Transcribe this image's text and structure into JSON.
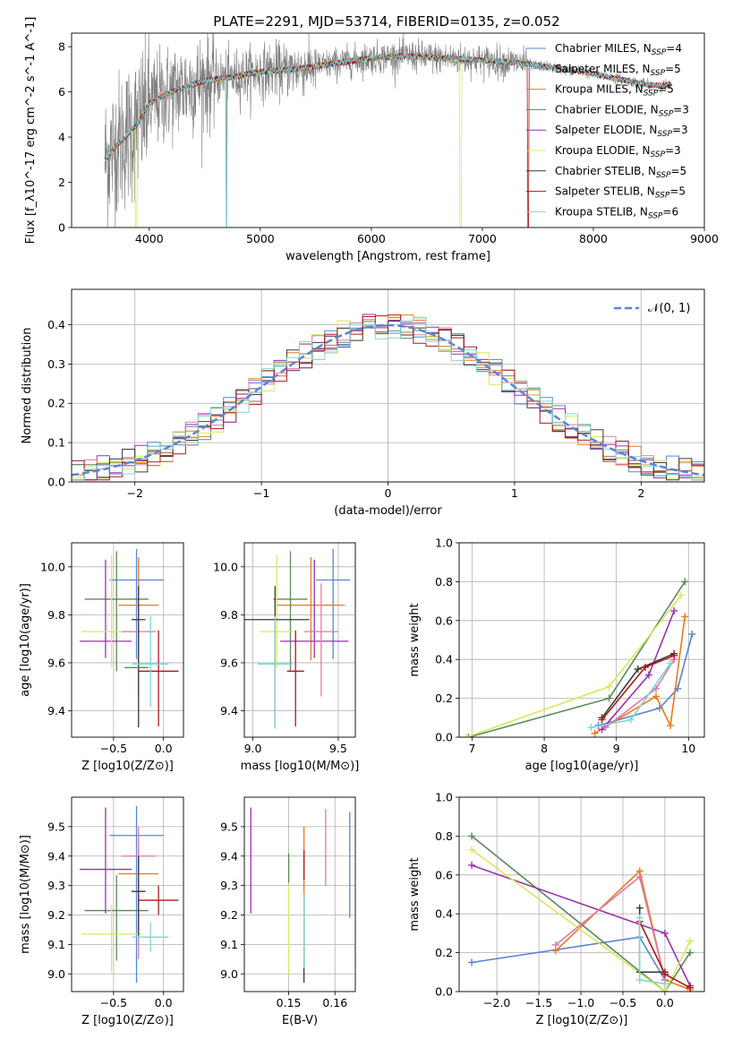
{
  "page_title": "PLATE=2291, MJD=53714, FIBERID=0135, z=0.052",
  "colors": {
    "Chabrier MILES": "#5b84d6",
    "Salpeter MILES": "#8f9cd2",
    "Kroupa MILES": "#e87b1c",
    "Chabrier ELODIE": "#5a8a5a",
    "Salpeter ELODIE": "#9b30b0",
    "Kroupa ELODIE": "#d8e85c",
    "Chabrier STELIB": "#3a3a3a",
    "Salpeter STELIB": "#b01818",
    "Kroupa STELIB": "#7ed6d6",
    "pink": "#e07aa8",
    "gauss": "#5b84d6",
    "data": "#808080"
  },
  "chart_data": [
    {
      "id": "spectrum",
      "type": "line",
      "title": "PLATE=2291, MJD=53714, FIBERID=0135, z=0.052",
      "xlabel": "wavelength [Angstrom, rest frame]",
      "ylabel": "Flux [f_λ10^-17 erg cm^-2 s^-1 A^-1]",
      "xlim": [
        3300,
        9000
      ],
      "ylim": [
        0,
        8.6
      ],
      "xticks": [
        4000,
        5000,
        6000,
        7000,
        8000,
        9000
      ],
      "yticks": [
        0,
        2,
        4,
        6,
        8
      ],
      "legend": "top-right",
      "continuum_x": [
        3600,
        3700,
        3800,
        3900,
        4000,
        4200,
        4500,
        4800,
        5000,
        5300,
        5600,
        6000,
        6300,
        6600,
        7000,
        7300,
        7600,
        7900,
        8200,
        8500,
        8700
      ],
      "continuum_y": [
        3.0,
        3.6,
        4.1,
        4.6,
        5.5,
        6.0,
        6.5,
        6.7,
        6.9,
        7.0,
        7.2,
        7.5,
        7.6,
        7.5,
        7.4,
        7.3,
        7.1,
        6.9,
        6.6,
        6.3,
        6.3
      ],
      "series": [
        {
          "name": "Chabrier MILES, N_SSP=4"
        },
        {
          "name": "Salpeter MILES, N_SSP=5"
        },
        {
          "name": "Kroupa MILES, N_SSP=5"
        },
        {
          "name": "Chabrier ELODIE, N_SSP=3"
        },
        {
          "name": "Salpeter ELODIE, N_SSP=3"
        },
        {
          "name": "Kroupa ELODIE, N_SSP=3"
        },
        {
          "name": "Chabrier STELIB, N_SSP=5"
        },
        {
          "name": "Salpeter STELIB, N_SSP=5"
        },
        {
          "name": "Kroupa STELIB, N_SSP=6"
        }
      ]
    },
    {
      "id": "residuals",
      "type": "line",
      "xlabel": "(data-model)/error",
      "ylabel": "Normed distribution",
      "xlim": [
        -2.5,
        2.5
      ],
      "ylim": [
        0,
        0.49
      ],
      "xticks": [
        -2,
        -1,
        0,
        1,
        2
      ],
      "yticks": [
        0.0,
        0.1,
        0.2,
        0.3,
        0.4
      ],
      "grid": true,
      "legend": "top-right",
      "legend_label": "𝒩(0, 1)",
      "bin_width": 0.1
    },
    {
      "id": "age_vs_Z",
      "type": "scatter",
      "xlabel": "Z [log10(Z/Z⊙)]",
      "ylabel": "age [log10(age/yr)]",
      "xlim": [
        -0.92,
        0.2
      ],
      "ylim": [
        9.29,
        10.1
      ],
      "xticks": [
        -0.5,
        0.0
      ],
      "yticks": [
        9.4,
        9.6,
        9.8,
        10.0
      ],
      "grid": true,
      "points": [
        {
          "color": "Chabrier MILES",
          "x": -0.27,
          "xerr": 0.27,
          "y": 9.945,
          "yerr_lo": 0.33,
          "yerr_hi": 0.13
        },
        {
          "color": "Kroupa MILES",
          "x": -0.25,
          "xerr": 0.2,
          "y": 9.84,
          "yerr_lo": 0.23,
          "yerr_hi": 0.2
        },
        {
          "color": "Chabrier ELODIE",
          "x": -0.47,
          "xerr": 0.32,
          "y": 9.865,
          "yerr_lo": 0.3,
          "yerr_hi": 0.2
        },
        {
          "color": "Salpeter ELODIE",
          "x": -0.58,
          "xerr": 0.26,
          "y": 9.69,
          "yerr_lo": 0.07,
          "yerr_hi": 0.34
        },
        {
          "color": "Kroupa ELODIE",
          "x": -0.52,
          "xerr": 0.3,
          "y": 9.73,
          "yerr_lo": 0.15,
          "yerr_hi": 0.32
        },
        {
          "color": "pink",
          "x": -0.25,
          "xerr": 0.17,
          "y": 9.73,
          "yerr_lo": 0.27,
          "yerr_hi": 0.2
        },
        {
          "color": "Chabrier STELIB",
          "x": -0.25,
          "xerr": 0.07,
          "y": 9.78,
          "yerr_lo": 0.45,
          "yerr_hi": 0.14
        },
        {
          "color": "Salpeter STELIB",
          "x": -0.05,
          "xerr": 0.2,
          "y": 9.565,
          "yerr_lo": 0.23,
          "yerr_hi": 0.17
        },
        {
          "color": "Kroupa STELIB",
          "x": -0.13,
          "xerr": 0.18,
          "y": 9.595,
          "yerr_lo": 0.18,
          "yerr_hi": 0.2
        },
        {
          "color": "Chabrier ELODIE",
          "x": -0.27,
          "xerr": 0.12,
          "y": 9.58,
          "yerr_lo": 0.0,
          "yerr_hi": 0.0
        }
      ]
    },
    {
      "id": "age_vs_mass",
      "type": "scatter",
      "xlabel": "mass [log10(M/M⊙)]",
      "ylabel": "",
      "xlim": [
        8.95,
        9.6
      ],
      "ylim": [
        9.29,
        10.1
      ],
      "xticks": [
        9.0,
        9.5
      ],
      "yticks": [
        9.4,
        9.6,
        9.8,
        10.0
      ],
      "grid": true,
      "points": [
        {
          "color": "Chabrier MILES",
          "x": 9.47,
          "xerr": 0.1,
          "y": 9.945,
          "yerr_lo": 0.33,
          "yerr_hi": 0.13
        },
        {
          "color": "Kroupa MILES",
          "x": 9.34,
          "xerr": 0.2,
          "y": 9.84,
          "yerr_lo": 0.23,
          "yerr_hi": 0.2
        },
        {
          "color": "Chabrier ELODIE",
          "x": 9.22,
          "xerr": 0.1,
          "y": 9.865,
          "yerr_lo": 0.3,
          "yerr_hi": 0.2
        },
        {
          "color": "Salpeter ELODIE",
          "x": 9.36,
          "xerr": 0.2,
          "y": 9.69,
          "yerr_lo": 0.07,
          "yerr_hi": 0.34
        },
        {
          "color": "Kroupa ELODIE",
          "x": 9.14,
          "xerr": 0.1,
          "y": 9.73,
          "yerr_lo": 0.15,
          "yerr_hi": 0.32
        },
        {
          "color": "pink",
          "x": 9.4,
          "xerr": 0.1,
          "y": 9.73,
          "yerr_lo": 0.27,
          "yerr_hi": 0.2
        },
        {
          "color": "Chabrier STELIB",
          "x": 9.13,
          "xerr": 0.2,
          "y": 9.78,
          "yerr_lo": 0.45,
          "yerr_hi": 0.14
        },
        {
          "color": "Salpeter STELIB",
          "x": 9.25,
          "xerr": 0.05,
          "y": 9.565,
          "yerr_lo": 0.23,
          "yerr_hi": 0.17
        },
        {
          "color": "Kroupa STELIB",
          "x": 9.13,
          "xerr": 0.1,
          "y": 9.595,
          "yerr_lo": 0.27,
          "yerr_hi": 0.2
        }
      ]
    },
    {
      "id": "weight_vs_age",
      "type": "line",
      "xlabel": "age [log10(age/yr)]",
      "ylabel": "mass weight",
      "xlim": [
        6.82,
        10.22
      ],
      "ylim": [
        0,
        1.0
      ],
      "xticks": [
        7,
        8,
        9,
        10
      ],
      "yticks": [
        0.0,
        0.2,
        0.4,
        0.6,
        0.8,
        1.0
      ],
      "grid": true,
      "series": [
        {
          "color": "Chabrier MILES",
          "x": [
            8.75,
            9.6,
            9.85,
            10.05
          ],
          "y": [
            0.06,
            0.15,
            0.25,
            0.53
          ]
        },
        {
          "color": "Kroupa MILES",
          "x": [
            8.7,
            9.55,
            9.75,
            9.95
          ],
          "y": [
            0.02,
            0.21,
            0.06,
            0.62
          ]
        },
        {
          "color": "Chabrier ELODIE",
          "x": [
            6.95,
            8.9,
            9.95
          ],
          "y": [
            0.0,
            0.2,
            0.8
          ]
        },
        {
          "color": "Salpeter ELODIE",
          "x": [
            8.8,
            9.45,
            9.8
          ],
          "y": [
            0.04,
            0.32,
            0.65
          ]
        },
        {
          "color": "Kroupa ELODIE",
          "x": [
            6.92,
            8.9,
            9.9
          ],
          "y": [
            0.0,
            0.26,
            0.73
          ]
        },
        {
          "color": "pink",
          "x": [
            8.85,
            9.55,
            9.8
          ],
          "y": [
            0.05,
            0.25,
            0.4
          ]
        },
        {
          "color": "Chabrier STELIB",
          "x": [
            8.8,
            9.3,
            9.8
          ],
          "y": [
            0.1,
            0.35,
            0.43
          ]
        },
        {
          "color": "Salpeter STELIB",
          "x": [
            8.8,
            9.4,
            9.8
          ],
          "y": [
            0.09,
            0.36,
            0.42
          ]
        },
        {
          "color": "Kroupa STELIB",
          "x": [
            8.65,
            9.2,
            9.75
          ],
          "y": [
            0.05,
            0.09,
            0.38
          ]
        }
      ]
    },
    {
      "id": "mass_vs_Z",
      "type": "scatter",
      "xlabel": "Z [log10(Z/Z⊙)]",
      "ylabel": "mass [log10(M/M⊙)]",
      "xlim": [
        -0.92,
        0.2
      ],
      "ylim": [
        8.94,
        9.6
      ],
      "xticks": [
        -0.5,
        0.0
      ],
      "yticks": [
        9.0,
        9.1,
        9.2,
        9.3,
        9.4,
        9.5
      ],
      "grid": true,
      "points": [
        {
          "color": "Chabrier MILES",
          "x": -0.27,
          "xerr": 0.27,
          "y": 9.47,
          "yerr_lo": 0.5,
          "yerr_hi": 0.1
        },
        {
          "color": "Kroupa MILES",
          "x": -0.25,
          "xerr": 0.2,
          "y": 9.34,
          "yerr_lo": 0.2,
          "yerr_hi": 0.1
        },
        {
          "color": "Chabrier ELODIE",
          "x": -0.47,
          "xerr": 0.32,
          "y": 9.215,
          "yerr_lo": 0.17,
          "yerr_hi": 0.12
        },
        {
          "color": "Salpeter ELODIE",
          "x": -0.58,
          "xerr": 0.26,
          "y": 9.355,
          "yerr_lo": 0.15,
          "yerr_hi": 0.21
        },
        {
          "color": "Kroupa ELODIE",
          "x": -0.52,
          "xerr": 0.3,
          "y": 9.135,
          "yerr_lo": 0.13,
          "yerr_hi": 0.1
        },
        {
          "color": "pink",
          "x": -0.25,
          "xerr": 0.17,
          "y": 9.4,
          "yerr_lo": 0.35,
          "yerr_hi": 0.1
        },
        {
          "color": "Chabrier STELIB",
          "x": -0.25,
          "xerr": 0.07,
          "y": 9.28,
          "yerr_lo": 0.15,
          "yerr_hi": 0.12
        },
        {
          "color": "Salpeter STELIB",
          "x": -0.05,
          "xerr": 0.2,
          "y": 9.25,
          "yerr_lo": 0.05,
          "yerr_hi": 0.05
        },
        {
          "color": "Kroupa STELIB",
          "x": -0.13,
          "xerr": 0.18,
          "y": 9.125,
          "yerr_lo": 0.05,
          "yerr_hi": 0.05
        }
      ]
    },
    {
      "id": "mass_vs_ebv",
      "type": "scatter",
      "xlabel": "E(B-V)",
      "ylabel": "",
      "xlim": [
        0.1404,
        0.1644
      ],
      "ylim": [
        8.94,
        9.6
      ],
      "xticks": [
        0.15,
        0.16
      ],
      "yticks": [
        9.0,
        9.1,
        9.2,
        9.3,
        9.4,
        9.5
      ],
      "grid": true,
      "points": [
        {
          "color": "Salpeter ELODIE",
          "x": 0.1418,
          "y": 9.385,
          "yerr_lo": 0.18,
          "yerr_hi": 0.18
        },
        {
          "color": "Kroupa ELODIE",
          "x": 0.15,
          "y": 9.1,
          "yerr_lo": 0.1,
          "yerr_hi": 0.2
        },
        {
          "color": "Chabrier ELODIE",
          "x": 0.15,
          "y": 9.36,
          "yerr_lo": 0.05,
          "yerr_hi": 0.05
        },
        {
          "color": "Chabrier STELIB",
          "x": 0.1533,
          "y": 9.12,
          "yerr_lo": 0.15,
          "yerr_hi": 0.15
        },
        {
          "color": "Kroupa STELIB",
          "x": 0.1533,
          "y": 9.12,
          "yerr_lo": 0.1,
          "yerr_hi": 0.15
        },
        {
          "color": "Kroupa MILES",
          "x": 0.1533,
          "y": 9.37,
          "yerr_lo": 0.1,
          "yerr_hi": 0.13
        },
        {
          "color": "Salpeter STELIB",
          "x": 0.1533,
          "y": 9.37,
          "yerr_lo": 0.05,
          "yerr_hi": 0.05
        },
        {
          "color": "pink",
          "x": 0.158,
          "y": 9.43,
          "yerr_lo": 0.13,
          "yerr_hi": 0.13
        },
        {
          "color": "Chabrier MILES",
          "x": 0.1632,
          "y": 9.37,
          "yerr_lo": 0.18,
          "yerr_hi": 0.18
        }
      ]
    },
    {
      "id": "weight_vs_Z",
      "type": "line",
      "xlabel": "Z [log10(Z/Z⊙)]",
      "ylabel": "mass weight",
      "xlim": [
        -2.45,
        0.47
      ],
      "ylim": [
        0,
        1.0
      ],
      "xticks": [
        -2.0,
        -1.5,
        -1.0,
        -0.5,
        0.0
      ],
      "yticks": [
        0.0,
        0.2,
        0.4,
        0.6,
        0.8,
        1.0
      ],
      "grid": true,
      "series": [
        {
          "color": "Chabrier MILES",
          "x": [
            -2.3,
            -0.3,
            0.0
          ],
          "y": [
            0.15,
            0.28,
            0.06
          ]
        },
        {
          "color": "Kroupa MILES",
          "x": [
            -1.3,
            -0.3,
            0.0,
            0.3
          ],
          "y": [
            0.21,
            0.62,
            0.06,
            0.01
          ]
        },
        {
          "color": "Chabrier ELODIE",
          "x": [
            -2.3,
            0.0,
            0.3
          ],
          "y": [
            0.8,
            0.0,
            0.2
          ]
        },
        {
          "color": "Salpeter ELODIE",
          "x": [
            -2.3,
            0.0,
            0.3
          ],
          "y": [
            0.65,
            0.3,
            0.03
          ]
        },
        {
          "color": "Kroupa ELODIE",
          "x": [
            -2.3,
            0.0,
            0.3
          ],
          "y": [
            0.73,
            0.0,
            0.26
          ]
        },
        {
          "color": "pink",
          "x": [
            -1.3,
            -0.3,
            0.0
          ],
          "y": [
            0.24,
            0.59,
            0.06
          ]
        },
        {
          "color": "Chabrier STELIB",
          "x": [
            -0.3,
            -0.3,
            0.0
          ],
          "y": [
            0.43,
            0.1,
            0.1
          ]
        },
        {
          "color": "Salpeter STELIB",
          "x": [
            -0.3,
            0.0,
            0.3
          ],
          "y": [
            0.36,
            0.09,
            0.02
          ]
        },
        {
          "color": "Kroupa STELIB",
          "x": [
            -0.3,
            -0.3,
            0.0
          ],
          "y": [
            0.38,
            0.06,
            0.04
          ]
        }
      ]
    }
  ]
}
